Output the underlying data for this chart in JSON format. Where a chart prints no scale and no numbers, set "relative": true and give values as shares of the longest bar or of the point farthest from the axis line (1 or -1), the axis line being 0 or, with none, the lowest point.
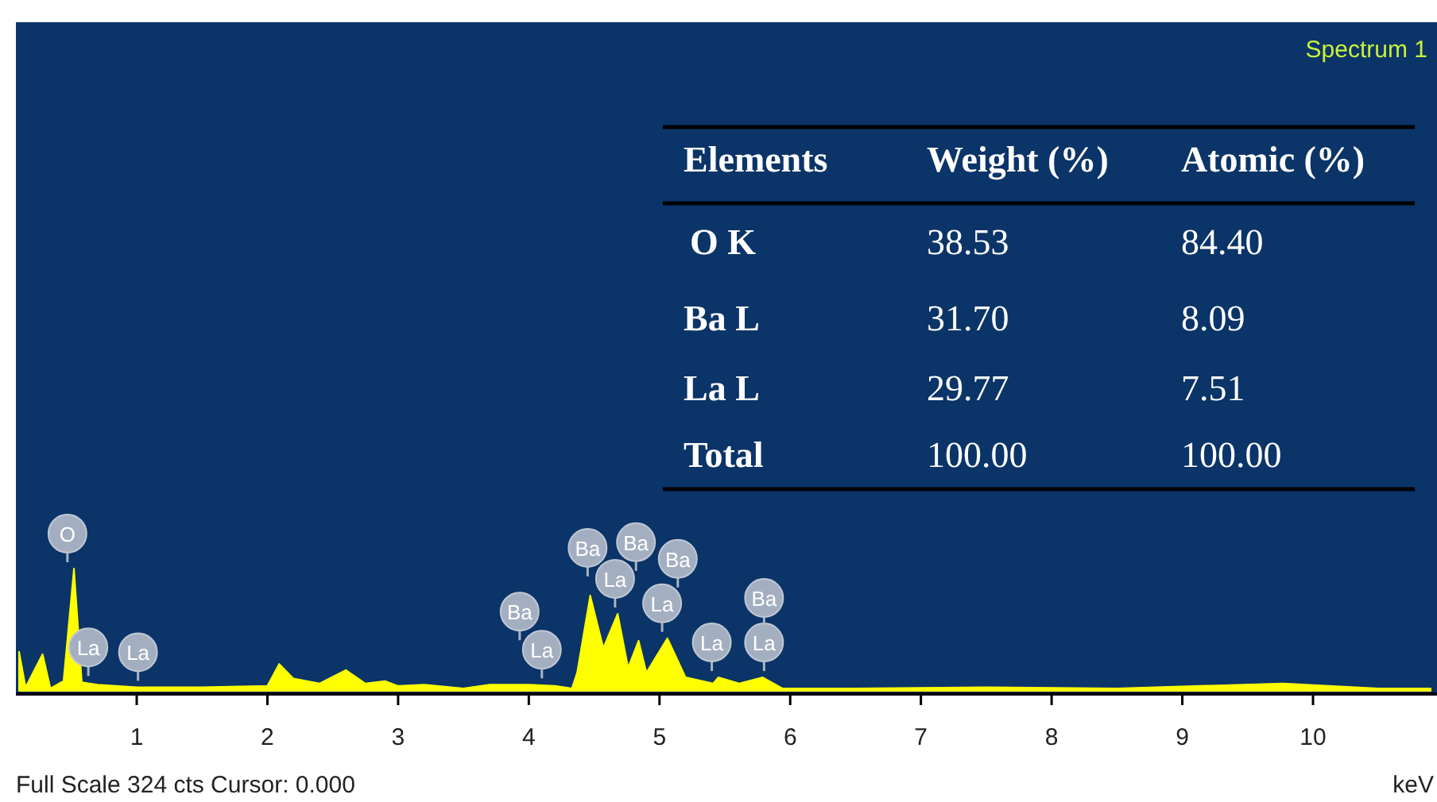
{
  "chart_data": {
    "type": "area",
    "relative": true,
    "title": "Spectrum 1",
    "subtitle": "Full Scale 324 cts Cursor: 0.000",
    "xlabel": "keV",
    "x": [
      0.1,
      0.15,
      0.28,
      0.34,
      0.44,
      0.52,
      0.58,
      0.7,
      1.0,
      1.5,
      2.0,
      2.09,
      2.2,
      2.4,
      2.6,
      2.75,
      2.9,
      3.0,
      3.2,
      3.5,
      3.7,
      4.0,
      4.2,
      4.33,
      4.37,
      4.47,
      4.57,
      4.68,
      4.76,
      4.84,
      4.9,
      5.06,
      5.2,
      5.41,
      5.45,
      5.61,
      5.79,
      5.94,
      6.5,
      7.5,
      8.5,
      9.77,
      10.5,
      10.9
    ],
    "series": [
      {
        "color": "#ffff00",
        "values": [
          0.32,
          0.03,
          0.3,
          0.02,
          0.08,
          1.0,
          0.07,
          0.05,
          0.03,
          0.03,
          0.04,
          0.22,
          0.1,
          0.06,
          0.17,
          0.06,
          0.08,
          0.04,
          0.05,
          0.02,
          0.05,
          0.05,
          0.04,
          0.02,
          0.15,
          0.78,
          0.35,
          0.63,
          0.19,
          0.41,
          0.15,
          0.43,
          0.11,
          0.06,
          0.11,
          0.06,
          0.11,
          0.02,
          0.02,
          0.03,
          0.02,
          0.06,
          0.02,
          0.02
        ]
      }
    ],
    "xlim": [
      0.1,
      10.9
    ],
    "xticks": [
      1,
      2,
      3,
      4,
      5,
      6,
      7,
      8,
      9,
      10
    ],
    "annotations": [
      "Elements",
      "Weight (%)",
      "Atomic (%)",
      "O K",
      "38.53",
      "84.40",
      "Ba L",
      "31.70",
      "8.09",
      "La L",
      "29.77",
      "7.51",
      "Total",
      "100.00",
      "100.00",
      {
        "text": "O",
        "x": 0.47
      },
      {
        "text": "La",
        "x": 0.63
      },
      {
        "text": "La",
        "x": 1.01
      },
      {
        "text": "La",
        "x": 4.1
      },
      {
        "text": "Ba",
        "x": 3.93
      },
      {
        "text": "La",
        "x": 4.66
      },
      {
        "text": "Ba",
        "x": 4.45
      },
      {
        "text": "La",
        "x": 5.02
      },
      {
        "text": "Ba",
        "x": 4.82
      },
      {
        "text": "La",
        "x": 5.4
      },
      {
        "text": "Ba",
        "x": 5.14
      },
      {
        "text": "La",
        "x": 5.8
      },
      {
        "text": "Ba",
        "x": 5.8
      }
    ]
  }
}
